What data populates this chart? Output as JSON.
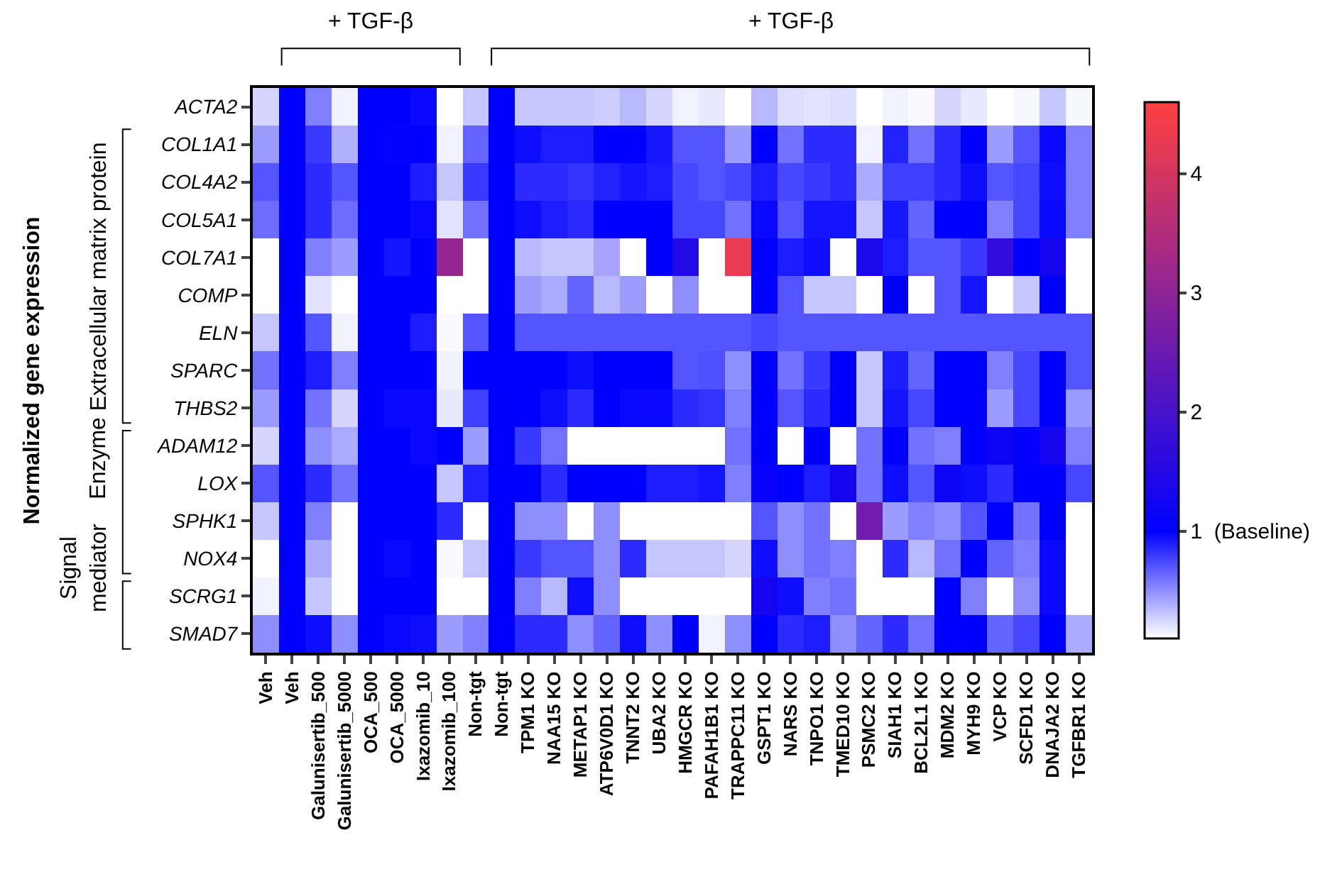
{
  "chart_data": {
    "type": "heatmap",
    "ylabel": "Normalized gene expression",
    "categories": [
      "Veh",
      "Veh",
      "Galunisertib_500",
      "Galunisertib_5000",
      "OCA_500",
      "OCA_5000",
      "Ixazomib_10",
      "Ixazomib_100",
      "Non-tgt",
      "Non-tgt",
      "TPM1 KO",
      "NAA15 KO",
      "METAP1 KO",
      "ATP6V0D1 KO",
      "TNNT2 KO",
      "UBA2 KO",
      "HMGCR KO",
      "PAFAH1B1 KO",
      "TRAPPC11 KO",
      "GSPT1 KO",
      "NARS KO",
      "TNPO1 KO",
      "TMED10 KO",
      "PSMC2 KO",
      "SIAH1 KO",
      "BCL2L1 KO",
      "MDM2 KO",
      "MYH9 KO",
      "VCP KO",
      "SCFD1 KO",
      "DNAJA2 KO",
      "TGFBR1 KO"
    ],
    "y_categories": [
      "ACTA2",
      "COL1A1",
      "COL4A2",
      "COL5A1",
      "COL7A1",
      "COMP",
      "ELN",
      "SPARC",
      "THBS2",
      "ADAM12",
      "LOX",
      "SPHK1",
      "NOX4",
      "SCRG1",
      "SMAD7"
    ],
    "cells": [
      [
        0.25,
        1,
        0.55,
        0.15,
        1,
        1,
        0.97,
        0.1,
        0.3,
        1,
        0.3,
        0.3,
        0.3,
        0.28,
        0.35,
        0.25,
        0.15,
        0.18,
        0.1,
        0.35,
        0.22,
        0.2,
        0.22,
        0.1,
        0.15,
        0.12,
        0.25,
        0.18,
        0.1,
        0.13,
        0.3,
        0.13
      ],
      [
        0.45,
        1,
        0.8,
        0.38,
        1,
        1.05,
        1,
        0.15,
        0.65,
        1,
        0.95,
        0.9,
        0.9,
        1,
        1,
        0.92,
        0.7,
        0.7,
        0.45,
        1,
        0.6,
        0.85,
        0.85,
        0.15,
        0.88,
        0.6,
        0.85,
        1,
        0.45,
        0.7,
        0.97,
        0.55
      ],
      [
        0.7,
        1,
        0.85,
        0.7,
        1,
        1,
        0.9,
        0.3,
        0.8,
        1,
        0.85,
        0.85,
        0.82,
        0.88,
        0.93,
        0.9,
        0.75,
        0.7,
        0.75,
        0.9,
        0.75,
        0.8,
        0.85,
        0.4,
        0.78,
        0.78,
        0.85,
        0.95,
        0.7,
        0.75,
        0.95,
        0.55
      ],
      [
        0.62,
        1,
        0.85,
        0.62,
        1,
        1,
        0.97,
        0.2,
        0.6,
        1,
        0.95,
        0.9,
        0.85,
        1,
        1,
        1,
        0.75,
        0.75,
        0.6,
        0.97,
        0.7,
        0.93,
        0.93,
        0.3,
        0.92,
        0.65,
        1,
        1,
        0.55,
        0.75,
        0.97,
        0.55
      ],
      [
        0.1,
        1,
        0.55,
        0.45,
        1,
        0.93,
        1,
        3.1,
        0.1,
        1,
        0.35,
        0.3,
        0.3,
        0.42,
        0.1,
        1,
        1.5,
        0.1,
        4.3,
        1,
        0.9,
        0.95,
        0.1,
        1.4,
        0.9,
        0.7,
        0.7,
        0.8,
        1.7,
        1,
        1.3,
        0.1
      ],
      [
        0.1,
        1,
        0.2,
        0.1,
        1,
        1,
        1,
        0.1,
        0.1,
        1,
        0.45,
        0.4,
        0.65,
        0.35,
        0.45,
        0.1,
        0.5,
        0.1,
        0.1,
        1,
        0.7,
        0.3,
        0.3,
        0.1,
        1,
        0.1,
        0.7,
        0.93,
        0.1,
        0.3,
        1,
        0.1
      ],
      [
        0.3,
        1,
        0.7,
        0.15,
        1,
        1,
        0.9,
        0.12,
        0.7,
        1,
        0.7,
        0.7,
        0.7,
        0.7,
        0.7,
        0.7,
        0.7,
        0.7,
        0.7,
        0.75,
        0.7,
        0.7,
        0.7,
        0.7,
        0.7,
        0.7,
        0.7,
        0.7,
        0.7,
        0.7,
        0.7,
        0.7
      ],
      [
        0.6,
        1,
        0.9,
        0.55,
        1,
        1,
        1,
        0.15,
        1,
        1,
        1,
        1,
        0.95,
        1,
        1,
        1,
        0.7,
        0.72,
        0.5,
        1,
        0.6,
        0.8,
        1,
        0.3,
        0.9,
        0.65,
        1,
        1,
        0.55,
        0.75,
        1,
        0.7
      ],
      [
        0.45,
        1,
        0.6,
        0.25,
        1,
        0.97,
        0.97,
        0.18,
        0.78,
        1,
        1,
        0.95,
        0.85,
        1,
        0.97,
        0.97,
        0.85,
        0.82,
        0.55,
        1,
        0.7,
        0.85,
        1,
        0.3,
        0.93,
        0.75,
        1,
        1,
        0.45,
        0.75,
        1,
        0.45
      ],
      [
        0.25,
        1,
        0.5,
        0.4,
        1,
        1,
        0.97,
        1,
        0.45,
        1,
        0.8,
        0.6,
        0.1,
        0.1,
        0.1,
        0.1,
        0.1,
        0.1,
        0.6,
        1,
        0.1,
        1,
        0.1,
        0.6,
        1,
        0.6,
        0.55,
        1,
        1.2,
        1.05,
        1.3,
        0.55
      ],
      [
        0.7,
        1,
        0.85,
        0.6,
        1,
        1,
        1,
        0.3,
        0.88,
        1,
        1,
        0.85,
        1,
        1,
        1,
        0.9,
        0.9,
        0.93,
        0.55,
        1.1,
        1,
        0.9,
        1.3,
        0.6,
        0.95,
        0.7,
        1.2,
        0.95,
        0.85,
        1,
        1,
        0.75
      ],
      [
        0.3,
        1,
        0.55,
        0.1,
        1,
        1,
        1,
        0.85,
        0.1,
        1,
        0.5,
        0.5,
        0.1,
        0.5,
        0.1,
        0.1,
        0.1,
        0.1,
        0.1,
        0.7,
        0.5,
        0.6,
        0.1,
        2.6,
        0.45,
        0.55,
        0.5,
        0.7,
        1,
        0.6,
        1,
        0.1
      ],
      [
        0.1,
        1,
        0.4,
        0.1,
        1,
        0.97,
        1,
        0.12,
        0.3,
        1,
        0.8,
        0.7,
        0.7,
        0.5,
        0.85,
        0.3,
        0.3,
        0.3,
        0.25,
        0.95,
        0.5,
        0.6,
        0.55,
        0.1,
        0.85,
        0.35,
        0.6,
        1,
        0.65,
        0.55,
        0.97,
        0.1
      ],
      [
        0.15,
        1,
        0.3,
        0.1,
        1,
        1,
        1,
        0.1,
        0.1,
        1,
        0.55,
        0.35,
        0.95,
        0.5,
        0.1,
        0.1,
        0.1,
        0.1,
        0.1,
        1.3,
        0.95,
        0.55,
        0.6,
        0.1,
        0.1,
        0.1,
        1,
        0.55,
        0.1,
        0.5,
        0.97,
        0.1
      ],
      [
        0.5,
        1,
        0.95,
        0.5,
        1,
        0.97,
        0.95,
        0.45,
        0.55,
        1,
        0.85,
        0.85,
        0.5,
        0.65,
        0.95,
        0.5,
        1,
        0.15,
        0.5,
        1,
        0.85,
        0.9,
        0.5,
        0.65,
        0.85,
        0.6,
        1,
        1,
        0.65,
        0.75,
        1,
        0.4
      ]
    ],
    "clim": [
      0.1,
      4.6
    ],
    "cticks": [
      {
        "value": 1,
        "label": "1  (Baseline)"
      },
      2,
      3,
      4
    ],
    "annotations": [
      "+ TGF-β",
      "+ TGF-β",
      "Extracellular matrix protein",
      "Enzyme",
      "Signal mediator"
    ]
  }
}
